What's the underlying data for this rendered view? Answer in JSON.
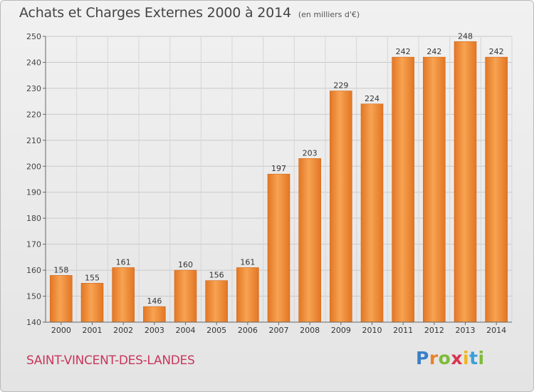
{
  "chart_data": {
    "type": "bar",
    "title": "Achats et Charges Externes 2000 à 2014",
    "subtitle": "(en milliers d'€)",
    "categories": [
      "2000",
      "2001",
      "2002",
      "2003",
      "2004",
      "2005",
      "2006",
      "2007",
      "2008",
      "2009",
      "2010",
      "2011",
      "2012",
      "2013",
      "2014"
    ],
    "values": [
      158,
      155,
      161,
      146,
      160,
      156,
      161,
      197,
      203,
      229,
      224,
      242,
      242,
      248,
      242
    ],
    "xlabel": "",
    "ylabel": "",
    "ylim": [
      140,
      250
    ],
    "yticks": [
      140,
      150,
      160,
      170,
      180,
      190,
      200,
      210,
      220,
      230,
      240,
      250
    ],
    "grid": true,
    "bar_color": "#f0913a",
    "data_labels": true
  },
  "commune": "SAINT-VINCENT-DES-LANDES",
  "brand": {
    "letters": [
      "P",
      "r",
      "o",
      "x",
      "i",
      "t",
      "i"
    ],
    "colors": [
      "#3a7fc7",
      "#e8832a",
      "#7dbb3a",
      "#d8344e",
      "#f2b51a",
      "#3aa0d8",
      "#7dbb3a"
    ]
  }
}
